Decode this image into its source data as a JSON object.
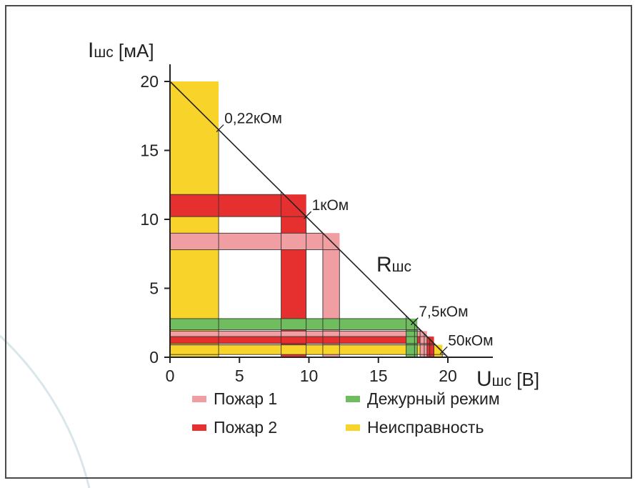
{
  "chart_data": {
    "type": "area",
    "ylabel": {
      "main": "I",
      "sub": "шс",
      "unit": " [мА]"
    },
    "xlabel": {
      "main": "U",
      "sub": "шс",
      "unit": " [В]"
    },
    "x_ticks": [
      "0",
      "5",
      "10",
      "15",
      "20"
    ],
    "y_ticks": [
      "0",
      "5",
      "10",
      "15",
      "20"
    ],
    "xlim": [
      0,
      20
    ],
    "ylim": [
      0,
      20
    ],
    "load_line": {
      "points": [
        [
          0,
          20
        ],
        [
          20,
          0
        ]
      ],
      "label_main": "R",
      "label_sub": "шс"
    },
    "resistance_marks": [
      {
        "label": "0,22кОм",
        "x": 3.5,
        "y": 16.5
      },
      {
        "label": "1кОм",
        "x": 9.8,
        "y": 10.2
      },
      {
        "label": "7,5кОм",
        "x": 17.5,
        "y": 2.5
      },
      {
        "label": "50кОм",
        "x": 19.6,
        "y": 0.4
      }
    ],
    "colors": {
      "fire1": "#f09ea1",
      "fire2": "#e6302f",
      "standby": "#6fbd5f",
      "fault": "#f8d32a"
    },
    "regions": [
      {
        "mode": "fault",
        "x": [
          0,
          3.5
        ],
        "y": [
          0,
          20
        ]
      },
      {
        "mode": "fire2",
        "x": [
          8.0,
          9.8
        ],
        "y": [
          0,
          11.8
        ]
      },
      {
        "mode": "fire1",
        "x": [
          11.0,
          12.2
        ],
        "y": [
          0,
          9.0
        ]
      },
      {
        "mode": "fire2",
        "x": [
          0,
          9.8
        ],
        "y": [
          10.2,
          11.8
        ]
      },
      {
        "mode": "fire1",
        "x": [
          0,
          12.2
        ],
        "y": [
          7.8,
          9.0
        ]
      },
      {
        "mode": "standby",
        "x": [
          0,
          17.6
        ],
        "y": [
          2.0,
          2.8
        ]
      },
      {
        "mode": "fire1",
        "x": [
          0,
          18.3
        ],
        "y": [
          1.5,
          1.9
        ]
      },
      {
        "mode": "fire2",
        "x": [
          0,
          18.7
        ],
        "y": [
          1.0,
          1.5
        ]
      },
      {
        "mode": "fault",
        "x": [
          0,
          19.6
        ],
        "y": [
          0.2,
          0.9
        ]
      },
      {
        "mode": "standby",
        "x": [
          17.0,
          17.8
        ],
        "y": [
          0,
          2.8
        ]
      },
      {
        "mode": "fire1",
        "x": [
          18.0,
          18.5
        ],
        "y": [
          0,
          1.9
        ]
      },
      {
        "mode": "fire2",
        "x": [
          18.5,
          19.0
        ],
        "y": [
          0,
          1.5
        ]
      },
      {
        "mode": "fault",
        "x": [
          19.0,
          19.6
        ],
        "y": [
          0,
          0.9
        ]
      }
    ],
    "legend": [
      {
        "label": "Пожар 1",
        "mode": "fire1"
      },
      {
        "label": "Пожар 2",
        "mode": "fire2"
      },
      {
        "label": "Дежурный режим",
        "mode": "standby"
      },
      {
        "label": "Неисправность",
        "mode": "fault"
      }
    ],
    "legend_placement": "bottom"
  }
}
